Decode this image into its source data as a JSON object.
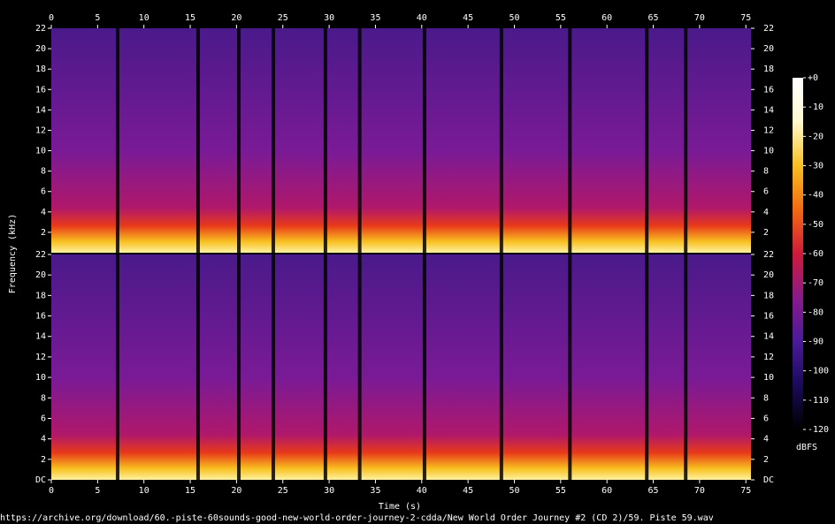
{
  "chart_data": {
    "type": "spectrogram",
    "xlabel": "Time (s)",
    "ylabel": "Frequency (kHz)",
    "xlim": [
      0,
      75.55
    ],
    "xticks": [
      0,
      5,
      10,
      15,
      20,
      25,
      30,
      35,
      40,
      45,
      50,
      55,
      60,
      65,
      70,
      75
    ],
    "channels": [
      {
        "ylim": [
          0,
          22
        ],
        "yticks": [
          2,
          4,
          6,
          8,
          10,
          12,
          14,
          16,
          18,
          20,
          22
        ]
      },
      {
        "ylim": [
          0,
          22
        ],
        "yticks": [
          {
            "value": 0,
            "label": "DC"
          },
          2,
          4,
          6,
          8,
          10,
          12,
          14,
          16,
          18,
          20,
          22
        ]
      }
    ],
    "gaps": [
      7.16,
      15.85,
      20.25,
      23.97,
      29.6,
      33.3,
      40.3,
      48.6,
      56.0,
      64.3,
      68.5
    ],
    "colorbar": {
      "label": "dBFS",
      "lim": [
        -120,
        0
      ],
      "ticks": [
        {
          "value": 0,
          "label": "+0"
        },
        -10,
        -20,
        -30,
        -40,
        -50,
        -60,
        -70,
        -80,
        -90,
        -100,
        -110,
        -120
      ],
      "colors": [
        "#000000",
        "#1a0a5a",
        "#4a1a9a",
        "#8a1a8a",
        "#d01a3a",
        "#f26a10",
        "#f8c020",
        "#fff8d0",
        "#ffffff"
      ]
    },
    "source": "https://archive.org/download/60.-piste-60sounds-good-new-world-order-journey-2-cdda/New World Order Journey #2 (CD 2)/59. Piste 59.wav"
  }
}
